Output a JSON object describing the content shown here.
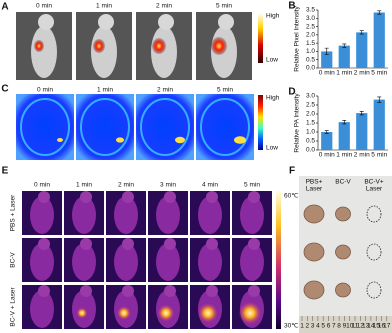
{
  "chart_data": [
    {
      "type": "bar",
      "panel_label": "B",
      "ylabel": "Relative Pixel Intensity",
      "categories": [
        "0 min",
        "1 min",
        "2 min",
        "5 min"
      ],
      "values": [
        1.0,
        1.35,
        2.15,
        3.35
      ],
      "errors": [
        0.2,
        0.1,
        0.1,
        0.1
      ],
      "color": "#3b8fd9",
      "ylim": [
        0,
        3.5
      ],
      "yticks": [
        {
          "value": 0,
          "label": "0.0"
        },
        {
          "value": 0.5,
          "label": "0.5"
        },
        {
          "value": 1,
          "label": "1.0"
        },
        {
          "value": 1.5,
          "label": "1.5"
        },
        {
          "value": 2,
          "label": "2.0"
        },
        {
          "value": 2.5,
          "label": "2.5"
        },
        {
          "value": 3,
          "label": "3.0"
        },
        {
          "value": 3.5,
          "label": "3.5"
        }
      ]
    },
    {
      "type": "bar",
      "panel_label": "D",
      "ylabel": "Relative PA Intensity",
      "categories": [
        "0 min",
        "1 min",
        "2 min",
        "5 min"
      ],
      "values": [
        1.0,
        1.55,
        2.05,
        2.8
      ],
      "errors": [
        0.08,
        0.1,
        0.1,
        0.15
      ],
      "color": "#3b8fd9",
      "ylim": [
        0,
        3.0
      ],
      "yticks": [
        {
          "value": 0,
          "label": "0.0"
        },
        {
          "value": 0.5,
          "label": "0.5"
        },
        {
          "value": 1,
          "label": "1.0"
        },
        {
          "value": 1.5,
          "label": "1.5"
        },
        {
          "value": 2,
          "label": "2.0"
        },
        {
          "value": 2.5,
          "label": "2.5"
        },
        {
          "value": 3,
          "label": "3.0"
        }
      ]
    }
  ],
  "panel_a": {
    "label": "A",
    "times": [
      "0 min",
      "1 min",
      "2 min",
      "5 min"
    ],
    "scale": [
      "High",
      "Low"
    ]
  },
  "panel_c": {
    "label": "C",
    "times": [
      "0 min",
      "1 min",
      "2 min",
      "5 min"
    ],
    "scale": [
      "High",
      "Low"
    ]
  },
  "panel_e": {
    "label": "E",
    "times": [
      "0 min",
      "1 min",
      "2 min",
      "3 min",
      "4 min",
      "5 min"
    ],
    "rows": [
      "PBS + Laser",
      "BC-V",
      "BC-V + Laser"
    ],
    "scale": [
      "60℃",
      "30℃"
    ]
  },
  "panel_f": {
    "label": "F",
    "groups": [
      [
        "PBS+",
        "Laser"
      ],
      [
        "BC-V"
      ],
      [
        "BC-V+",
        "Laser"
      ]
    ],
    "ruler": [
      1,
      2,
      3,
      4,
      5,
      6,
      7,
      8,
      9,
      10,
      11,
      12,
      13,
      14,
      15,
      16,
      17
    ]
  }
}
